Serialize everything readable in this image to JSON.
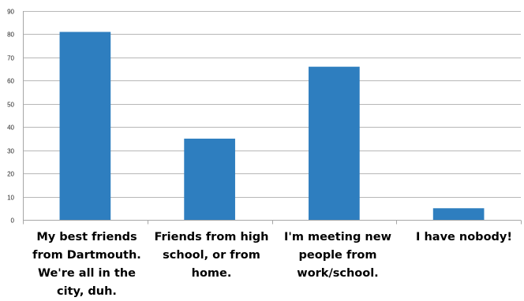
{
  "colors": {
    "bar": "#2e7ebf",
    "gridline": "#b7b7b7",
    "axis": "#a6a6a6",
    "tick_text": "#222222"
  },
  "chart_data": {
    "type": "bar",
    "categories": [
      "My best friends from Dartmouth. We're all in the city, duh.",
      "Friends from high school, or from home.",
      "I'm meeting new people from work/school.",
      "I have nobody!"
    ],
    "values": [
      81,
      35,
      66,
      5
    ],
    "ylim": [
      0,
      90
    ],
    "yticks": [
      0,
      10,
      20,
      30,
      40,
      50,
      60,
      70,
      80,
      90
    ],
    "grid": true,
    "legend": "none",
    "title": "",
    "xlabel": "",
    "ylabel": ""
  }
}
